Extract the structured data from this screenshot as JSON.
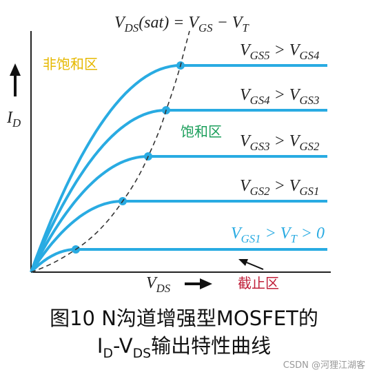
{
  "sat_label": [
    "V",
    "DS",
    "(sat) = V",
    "GS",
    " − V",
    "T"
  ],
  "curve_labels": [
    [
      "V",
      "GS5",
      " > V",
      "GS4"
    ],
    [
      "V",
      "GS4",
      " > V",
      "GS3"
    ],
    [
      "V",
      "GS3",
      " > V",
      "GS2"
    ],
    [
      "V",
      "GS2",
      " > V",
      "GS1"
    ],
    [
      "V",
      "GS1",
      " > V",
      "T",
      " > 0"
    ]
  ],
  "y_axis_label": [
    "I",
    "D"
  ],
  "x_axis_label": [
    "V",
    "DS"
  ],
  "regions": {
    "linear": "非饱和区",
    "saturation": "饱和区",
    "cutoff": "截止区"
  },
  "caption": {
    "line1": "图10 N沟道增强型MOSFET的",
    "line2": [
      "I",
      "D",
      "-V",
      "DS",
      "输出特性曲线"
    ]
  },
  "watermark": "CSDN @河狸江湖客"
}
